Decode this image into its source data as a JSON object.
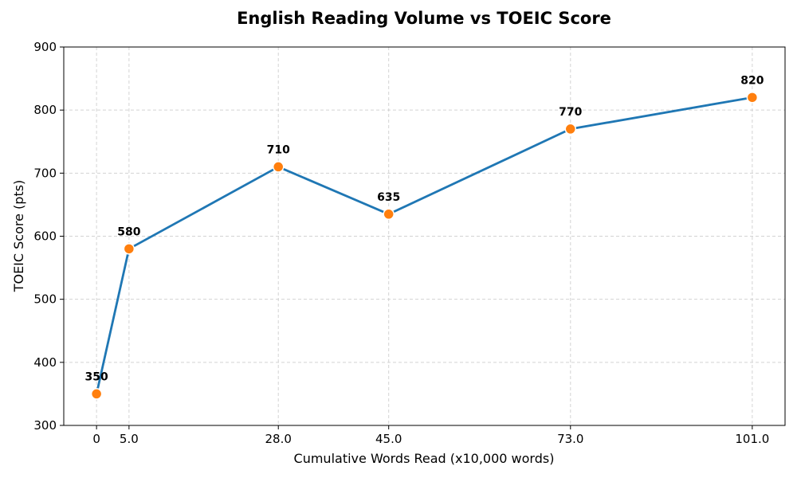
{
  "chart_data": {
    "type": "line",
    "title": "English Reading Volume vs TOEIC Score",
    "xlabel": "Cumulative Words Read (x10,000 words)",
    "ylabel": "TOEIC Score (pts)",
    "x": [
      0,
      5.0,
      28.0,
      45.0,
      73.0,
      101.0
    ],
    "x_tick_labels": [
      "0",
      "5.0",
      "28.0",
      "45.0",
      "73.0",
      "101.0"
    ],
    "series": [
      {
        "values": [
          350,
          580,
          710,
          635,
          770,
          820
        ],
        "data_labels": [
          "350",
          "580",
          "710",
          "635",
          "770",
          "820"
        ],
        "line_color": "#1f77b4",
        "marker_color": "#ff7f0e"
      }
    ],
    "ylim": [
      300,
      900
    ],
    "y_ticks": [
      300,
      400,
      500,
      600,
      700,
      800,
      900
    ],
    "y_tick_labels": [
      "300",
      "400",
      "500",
      "600",
      "700",
      "800",
      "900"
    ],
    "grid": true,
    "legend": "none"
  }
}
